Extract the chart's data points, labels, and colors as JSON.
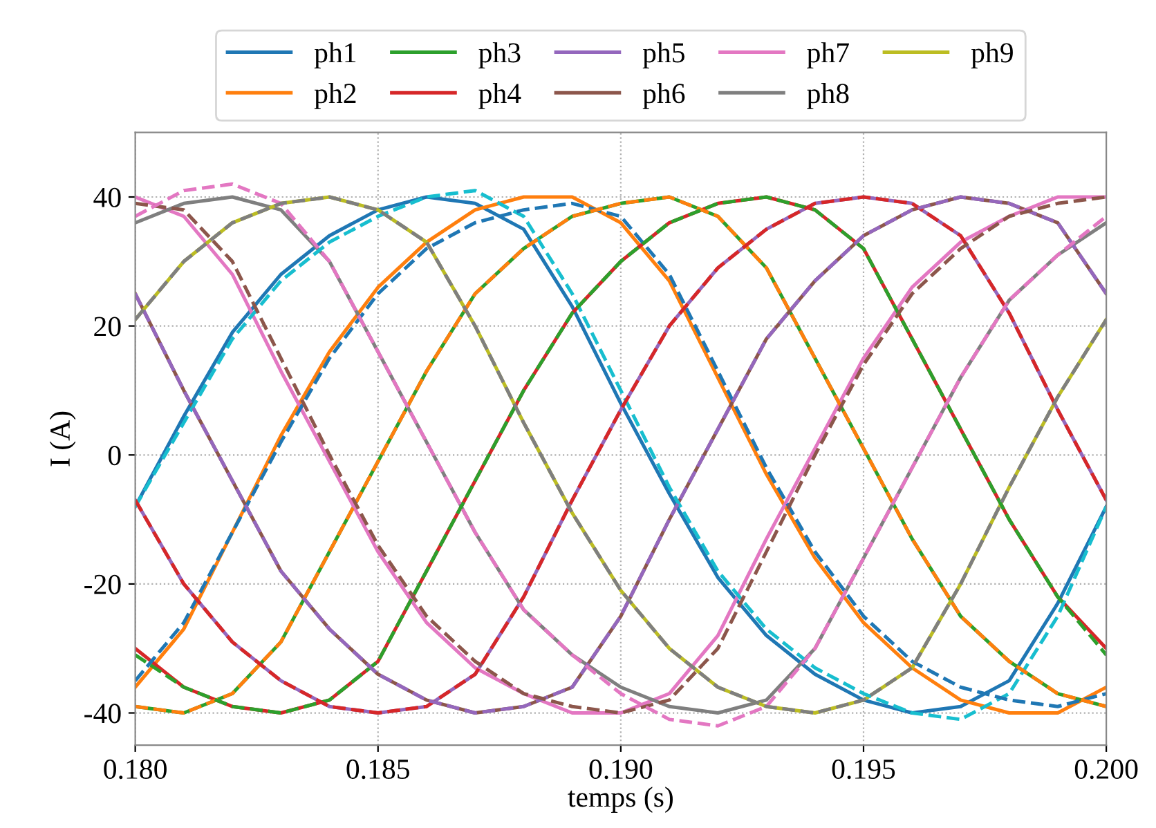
{
  "chart_data": {
    "type": "line",
    "xlabel": "temps (s)",
    "ylabel": "I (A)",
    "x": [
      0.18,
      0.181,
      0.182,
      0.183,
      0.184,
      0.185,
      0.186,
      0.187,
      0.188,
      0.189,
      0.19,
      0.191,
      0.192,
      0.193,
      0.194,
      0.195,
      0.196,
      0.197,
      0.198,
      0.199,
      0.2
    ],
    "series": [
      {
        "name": "ph1",
        "color": "#1f77b4",
        "values": [
          -8,
          6,
          19,
          28,
          34,
          38,
          40,
          39,
          35,
          23,
          8,
          -6,
          -19,
          -28,
          -34,
          -38,
          -40,
          -39,
          -35,
          -23,
          -8
        ]
      },
      {
        "name": "ph2",
        "color": "#ff7f0e",
        "values": [
          -36,
          -27,
          -12,
          3,
          16,
          26,
          33,
          38,
          40,
          40,
          36,
          27,
          12,
          -3,
          -16,
          -26,
          -33,
          -38,
          -40,
          -40,
          -36
        ]
      },
      {
        "name": "ph3",
        "color": "#2ca02c",
        "values": [
          -39,
          -40,
          -37,
          -29,
          -15,
          -1,
          13,
          25,
          32,
          37,
          39,
          40,
          37,
          29,
          15,
          1,
          -13,
          -25,
          -32,
          -37,
          -39
        ]
      },
      {
        "name": "ph4",
        "color": "#d62728",
        "values": [
          -30,
          -36,
          -39,
          -40,
          -38,
          -32,
          -18,
          -4,
          10,
          22,
          30,
          36,
          39,
          40,
          38,
          32,
          18,
          4,
          -10,
          -22,
          -30
        ]
      },
      {
        "name": "ph5",
        "color": "#9467bd",
        "values": [
          -7,
          -20,
          -29,
          -35,
          -39,
          -40,
          -39,
          -34,
          -22,
          -7,
          7,
          20,
          29,
          35,
          39,
          40,
          39,
          34,
          22,
          7,
          -7
        ]
      },
      {
        "name": "ph6",
        "color": "#8c564b",
        "values": [
          25,
          10,
          -4,
          -18,
          -27,
          -34,
          -38,
          -40,
          -39,
          -36,
          -25,
          -10,
          4,
          18,
          27,
          34,
          38,
          40,
          39,
          36,
          25
        ]
      },
      {
        "name": "ph7",
        "color": "#e377c2",
        "values": [
          40,
          37,
          28,
          13,
          -1,
          -15,
          -26,
          -33,
          -37,
          -40,
          -40,
          -37,
          -28,
          -13,
          1,
          15,
          26,
          33,
          37,
          40,
          40
        ]
      },
      {
        "name": "ph8",
        "color": "#7f7f7f",
        "values": [
          36,
          39,
          40,
          38,
          30,
          16,
          2,
          -12,
          -24,
          -31,
          -36,
          -39,
          -40,
          -38,
          -30,
          -16,
          -2,
          12,
          24,
          31,
          36
        ]
      },
      {
        "name": "ph9",
        "color": "#bcbd22",
        "values": [
          21,
          30,
          36,
          39,
          40,
          38,
          33,
          20,
          5,
          -9,
          -21,
          -30,
          -36,
          -39,
          -40,
          -38,
          -33,
          -20,
          -5,
          9,
          21
        ]
      },
      {
        "color": "#17becf",
        "line_style": "dashed",
        "values": [
          -8,
          5,
          18,
          27,
          33,
          37,
          40,
          41,
          37,
          25,
          10,
          -5,
          -18,
          -27,
          -33,
          -37,
          -40,
          -41,
          -37,
          -25,
          -8
        ]
      },
      {
        "color": "#1f77b4",
        "line_style": "dashed",
        "values": [
          -35,
          -26,
          -12,
          2,
          15,
          25,
          32,
          36,
          38,
          39,
          37,
          28,
          13,
          -2,
          -15,
          -25,
          -32,
          -36,
          -38,
          -39,
          -37
        ]
      },
      {
        "color": "#ff7f0e",
        "line_style": "dashed",
        "values": [
          -39,
          -40,
          -37,
          -29,
          -15,
          -1,
          13,
          25,
          32,
          37,
          39,
          40,
          37,
          29,
          15,
          1,
          -13,
          -25,
          -32,
          -37,
          -39
        ]
      },
      {
        "color": "#2ca02c",
        "line_style": "dashed",
        "values": [
          -31,
          -36,
          -39,
          -40,
          -38,
          -32,
          -18,
          -4,
          10,
          22,
          30,
          36,
          39,
          40,
          38,
          32,
          18,
          4,
          -10,
          -22,
          -31
        ]
      },
      {
        "color": "#d62728",
        "line_style": "dashed",
        "values": [
          -7,
          -20,
          -29,
          -35,
          -39,
          -40,
          -39,
          -34,
          -22,
          -7,
          7,
          20,
          29,
          35,
          39,
          40,
          39,
          34,
          22,
          7,
          -7
        ]
      },
      {
        "color": "#9467bd",
        "line_style": "dashed",
        "values": [
          25,
          10,
          -4,
          -18,
          -27,
          -34,
          -38,
          -40,
          -39,
          -36,
          -25,
          -10,
          4,
          18,
          27,
          34,
          38,
          40,
          39,
          36,
          25
        ]
      },
      {
        "color": "#8c564b",
        "line_style": "dashed",
        "values": [
          39,
          38,
          30,
          15,
          0,
          -14,
          -25,
          -32,
          -37,
          -39,
          -40,
          -38,
          -30,
          -15,
          0,
          14,
          25,
          32,
          37,
          39,
          40
        ]
      },
      {
        "color": "#e377c2",
        "line_style": "dashed",
        "values": [
          37,
          41,
          42,
          39,
          30,
          16,
          2,
          -12,
          -24,
          -31,
          -37,
          -41,
          -42,
          -39,
          -30,
          -16,
          -2,
          12,
          24,
          31,
          37
        ]
      },
      {
        "color": "#7f7f7f",
        "line_style": "dashed",
        "values": [
          21,
          30,
          36,
          39,
          40,
          38,
          33,
          20,
          5,
          -9,
          -21,
          -30,
          -36,
          -39,
          -40,
          -38,
          -33,
          -20,
          -5,
          9,
          21
        ]
      }
    ],
    "xlim": [
      0.18,
      0.2
    ],
    "xticks": [
      {
        "value": 0.18,
        "label": "0.180"
      },
      {
        "value": 0.185,
        "label": "0.185"
      },
      {
        "value": 0.19,
        "label": "0.190"
      },
      {
        "value": 0.195,
        "label": "0.195"
      },
      {
        "value": 0.2,
        "label": "0.200"
      }
    ],
    "ylim": [
      -45,
      50
    ],
    "yticks": [
      -40,
      -20,
      0,
      20,
      40
    ],
    "grid": true,
    "legend": "top",
    "line_style": "solid",
    "marker": "none"
  }
}
